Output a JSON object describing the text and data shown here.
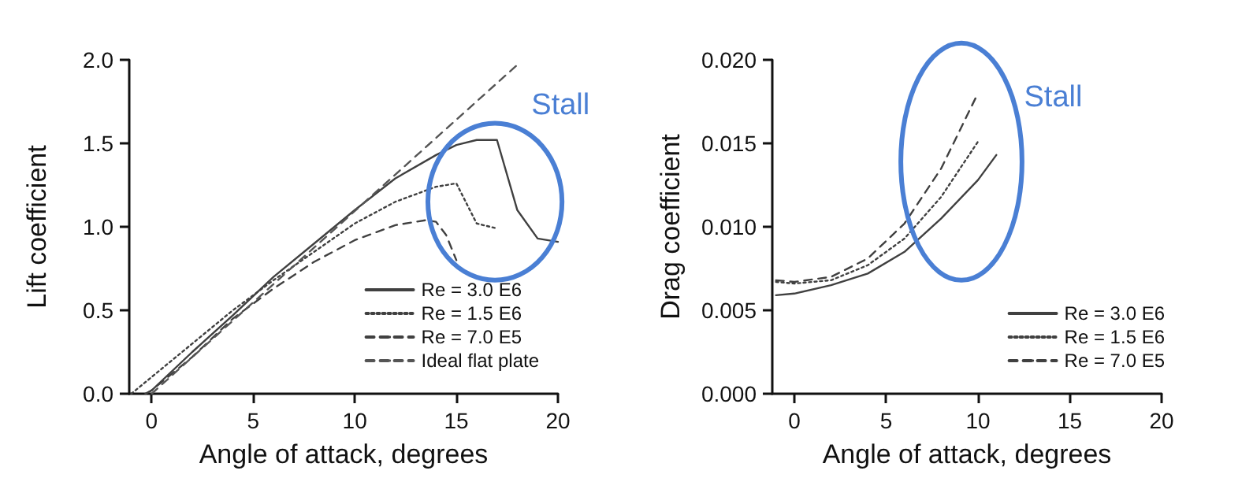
{
  "chart_data": [
    {
      "type": "line",
      "xlabel": "Angle of attack, degrees",
      "ylabel": "Lift coefficient",
      "xlim": [
        -1.1,
        20
      ],
      "ylim": [
        0,
        2
      ],
      "xticks": [
        0,
        5,
        10,
        15,
        20
      ],
      "yticks": [
        {
          "value": 0,
          "label": "0.0"
        },
        {
          "value": 0.5,
          "label": "0.5"
        },
        {
          "value": 1,
          "label": "1.0"
        },
        {
          "value": 1.5,
          "label": "1.5"
        },
        {
          "value": 2,
          "label": "2.0"
        }
      ],
      "legend": "bottom right",
      "annotations": [
        "Stall"
      ],
      "series": [
        {
          "name": "Re = 3.0 E6",
          "color": "#404040",
          "line_style": "solid",
          "x": [
            -0.3,
            0,
            2,
            4,
            6,
            8,
            10,
            12,
            14,
            15,
            16,
            17,
            18,
            19,
            20
          ],
          "values": [
            0,
            0.02,
            0.25,
            0.47,
            0.7,
            0.9,
            1.1,
            1.29,
            1.43,
            1.49,
            1.52,
            1.52,
            1.1,
            0.93,
            0.91
          ]
        },
        {
          "name": "Re = 1.5 E6",
          "color": "#404040",
          "line_style": "dotted",
          "x": [
            -1,
            0,
            2,
            4,
            6,
            8,
            10,
            12,
            14,
            15,
            16,
            17
          ],
          "values": [
            0,
            0.1,
            0.3,
            0.5,
            0.68,
            0.85,
            1.02,
            1.15,
            1.24,
            1.26,
            1.02,
            0.99
          ]
        },
        {
          "name": "Re = 7.0 E5",
          "color": "#404040",
          "line_style": "dashed",
          "x": [
            -0.3,
            0,
            2,
            4,
            6,
            8,
            10,
            12,
            13.5,
            14,
            14.5,
            15
          ],
          "values": [
            0,
            0.02,
            0.22,
            0.45,
            0.63,
            0.79,
            0.92,
            1.01,
            1.04,
            1.03,
            0.95,
            0.8
          ]
        },
        {
          "name": "Ideal flat plate",
          "color": "#555555",
          "line_style": "dashed",
          "x": [
            0,
            18
          ],
          "values": [
            0,
            1.97
          ]
        }
      ]
    },
    {
      "type": "line",
      "xlabel": "Angle of attack, degrees",
      "ylabel": "Drag coefficient",
      "xlim": [
        -1.2,
        20
      ],
      "ylim": [
        0,
        0.02
      ],
      "xticks": [
        0,
        5,
        10,
        15,
        20
      ],
      "yticks": [
        {
          "value": 0,
          "label": "0.000"
        },
        {
          "value": 0.005,
          "label": "0.005"
        },
        {
          "value": 0.01,
          "label": "0.010"
        },
        {
          "value": 0.015,
          "label": "0.015"
        },
        {
          "value": 0.02,
          "label": "0.020"
        }
      ],
      "legend": "bottom right",
      "annotations": [
        "Stall"
      ],
      "series": [
        {
          "name": "Re = 3.0 E6",
          "color": "#404040",
          "line_style": "solid",
          "x": [
            -1,
            0,
            2,
            4,
            6,
            8,
            10,
            11
          ],
          "values": [
            0.0059,
            0.006,
            0.0065,
            0.0072,
            0.0085,
            0.0105,
            0.0128,
            0.0143
          ]
        },
        {
          "name": "Re = 1.5 E6",
          "color": "#404040",
          "line_style": "dotted",
          "x": [
            -1,
            0,
            2,
            4,
            6,
            8,
            10
          ],
          "values": [
            0.0067,
            0.0066,
            0.0068,
            0.0077,
            0.0093,
            0.0118,
            0.0151
          ]
        },
        {
          "name": "Re = 7.0 E5",
          "color": "#404040",
          "line_style": "dashed",
          "x": [
            -1,
            0,
            2,
            4,
            6,
            8,
            10
          ],
          "values": [
            0.0068,
            0.0067,
            0.007,
            0.0081,
            0.0102,
            0.0135,
            0.018
          ]
        }
      ]
    }
  ]
}
